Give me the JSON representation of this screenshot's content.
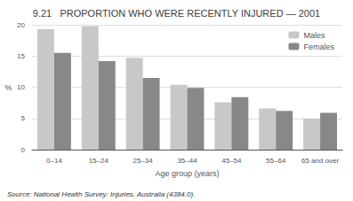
{
  "chart_data": {
    "type": "bar",
    "title": "9.21   PROPORTION WHO WERE RECENTLY INJURED — 2001",
    "categories": [
      "0–14",
      "15–24",
      "25–34",
      "35–44",
      "45–54",
      "55–64",
      "65 and over"
    ],
    "series": [
      {
        "name": "Males",
        "color": "#c8c8c8",
        "values": [
          19.3,
          19.8,
          14.7,
          10.4,
          7.6,
          6.6,
          5.0
        ]
      },
      {
        "name": "Females",
        "color": "#888888",
        "values": [
          15.5,
          14.2,
          11.5,
          9.9,
          8.4,
          6.2,
          5.9
        ]
      }
    ],
    "xlabel": "Age group (years)",
    "ylabel": "%",
    "ylim": [
      0,
      20
    ],
    "yticks": [
      0,
      5,
      10,
      15,
      20
    ],
    "grid": true,
    "legend": "upper right",
    "source": "Source: National Health Survey: Injuries, Australia (4384.0)."
  }
}
